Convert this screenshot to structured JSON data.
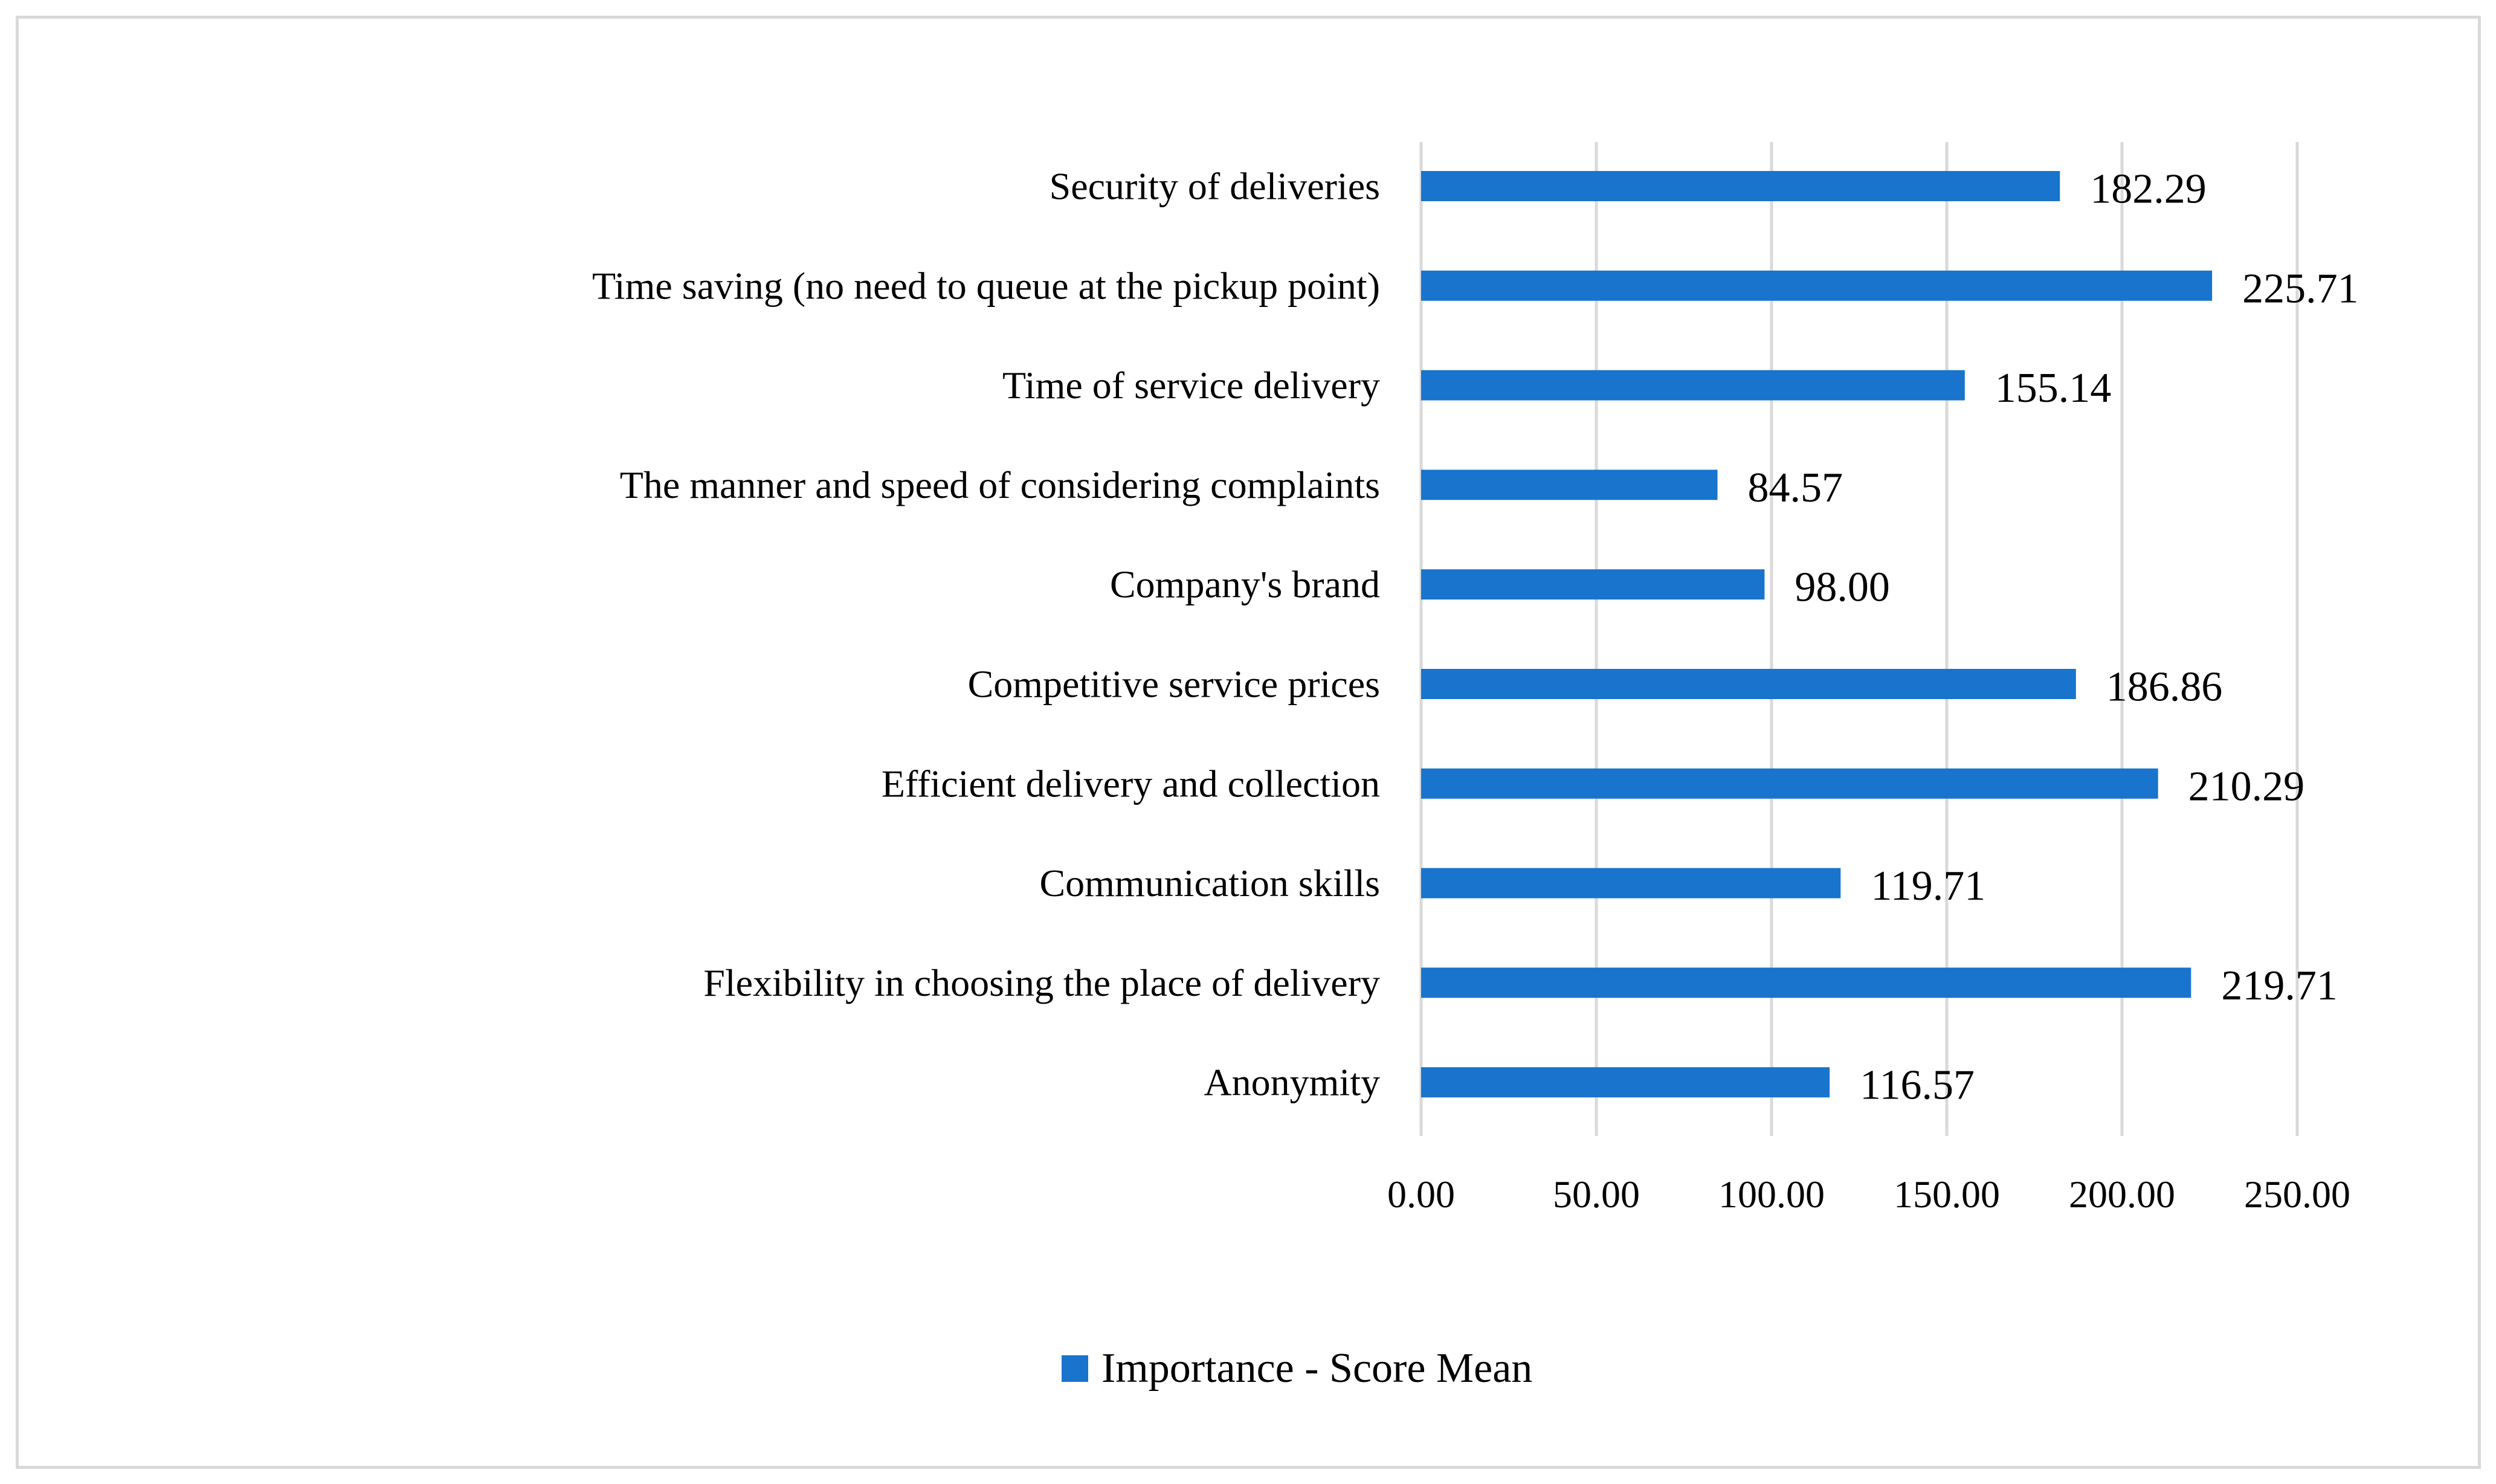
{
  "chart_data": {
    "type": "bar",
    "orientation": "horizontal",
    "title": "",
    "xlabel": "",
    "ylabel": "",
    "categories": [
      "Security of deliveries",
      "Time saving (no need to queue at the pickup point)",
      "Time of service delivery",
      "The manner and speed of considering complaints",
      "Company's brand",
      "Competitive service prices",
      "Efficient delivery and collection",
      "Communication skills",
      "Flexibility in choosing the place of delivery",
      "Anonymity"
    ],
    "series": [
      {
        "name": "Importance - Score Mean",
        "values": [
          182.29,
          225.71,
          155.14,
          84.57,
          98.0,
          186.86,
          210.29,
          119.71,
          219.71,
          116.57
        ],
        "value_labels": [
          "182.29",
          "225.71",
          "155.14",
          "84.57",
          "98.00",
          "186.86",
          "210.29",
          "119.71",
          "219.71",
          "116.57"
        ],
        "color": "#1874CD"
      }
    ],
    "xlim": [
      0,
      250
    ],
    "xticks": [
      0,
      50,
      100,
      150,
      200,
      250
    ],
    "xtick_labels": [
      "0.00",
      "50.00",
      "100.00",
      "150.00",
      "200.00",
      "250.00"
    ],
    "grid": "vertical",
    "legend_position": "bottom",
    "gridline_color": "#d9d9d9"
  }
}
